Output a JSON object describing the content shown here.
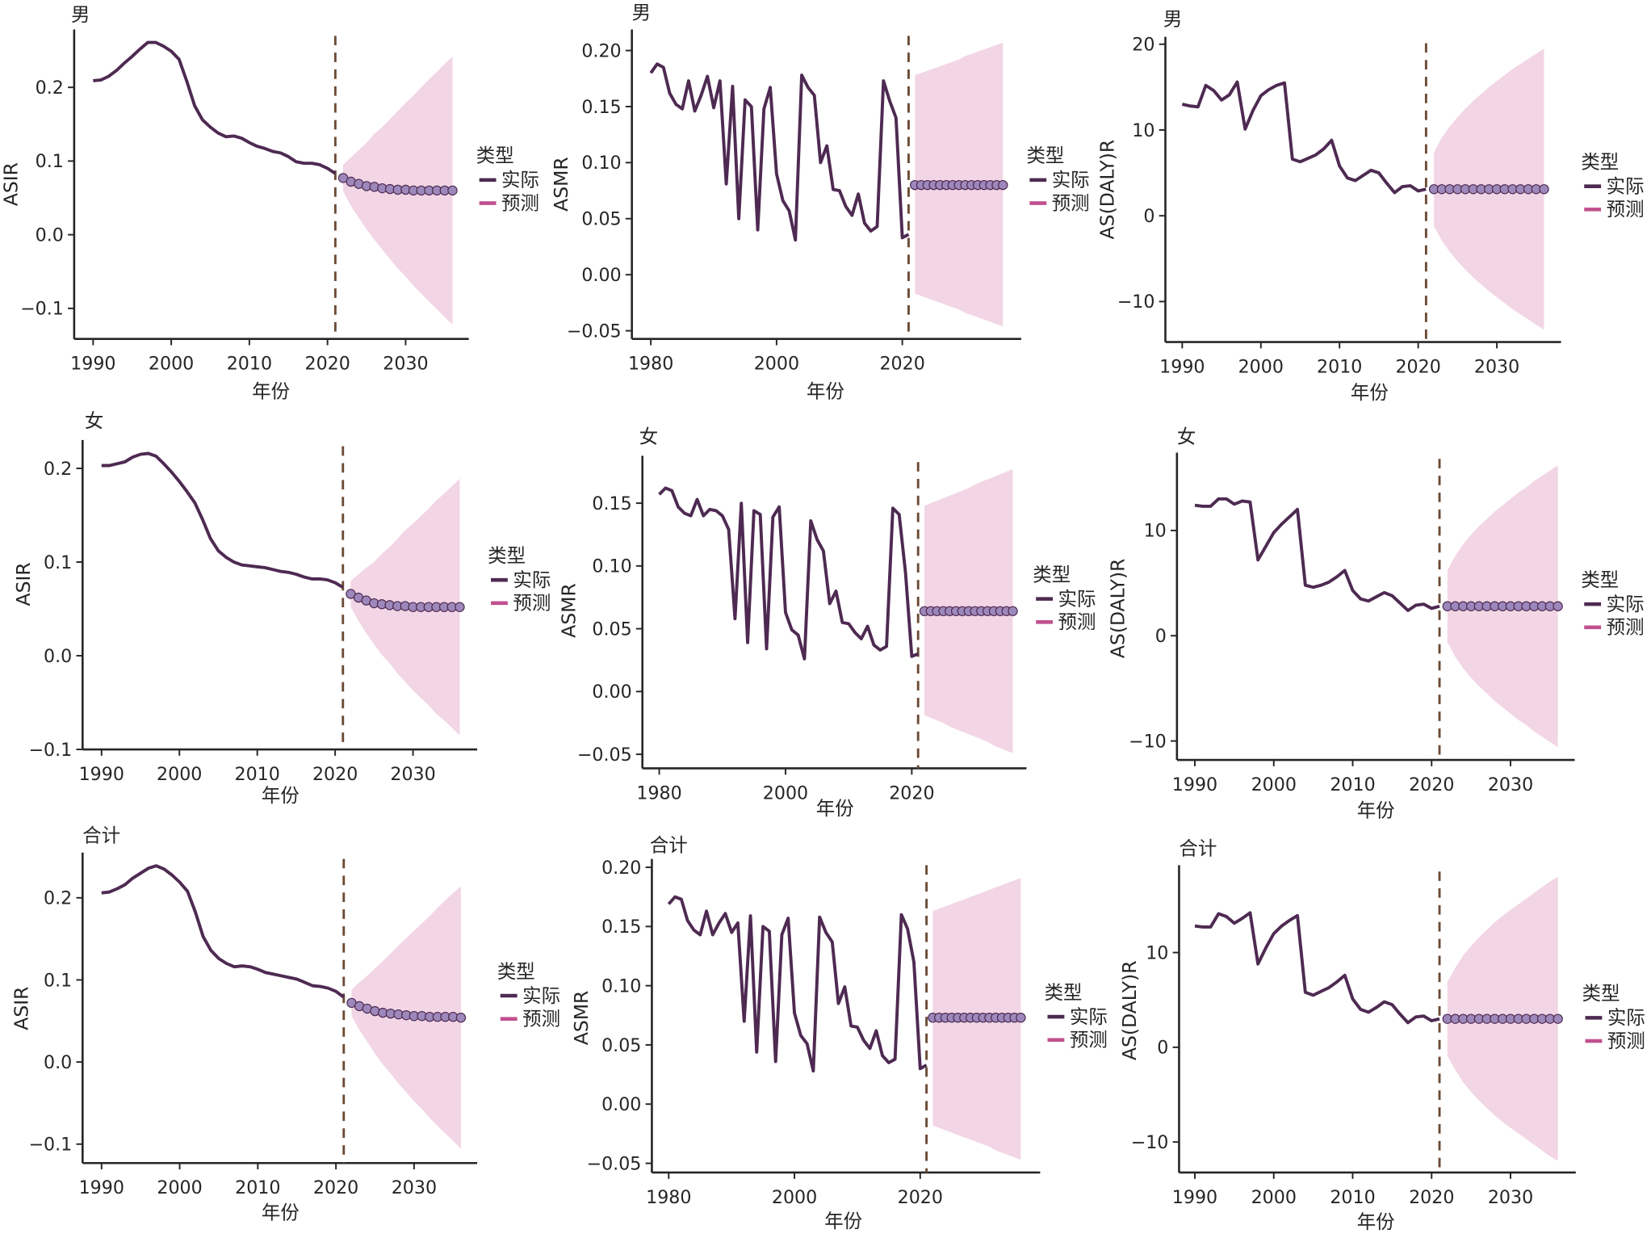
{
  "colors": {
    "actual_line": "#4e2a52",
    "forecast_line": "#c0508e",
    "forecast_dot_fill": "#9d88bb",
    "band_fill": "#f2d6e5",
    "divider": "#6b4a34",
    "axis": "#262626"
  },
  "legend": {
    "title": "类型",
    "entries": [
      "实际",
      "预测"
    ]
  },
  "chart_data": [
    {
      "type": "line",
      "panel_title": "男",
      "xlabel": "年份",
      "ylabel": "ASIR",
      "xticks": [
        1990,
        2000,
        2010,
        2020,
        2030
      ],
      "xtick_labels": [
        "1990",
        "2000",
        "2010",
        "2020",
        "2030"
      ],
      "yticks": [
        -0.1,
        0.0,
        0.1,
        0.2
      ],
      "ytick_labels": [
        "−0.1",
        "0.0",
        "0.1",
        "0.2"
      ],
      "xlim": [
        1988,
        2038
      ],
      "ylim": [
        -0.14,
        0.27
      ],
      "divider_year": 2021,
      "actual": {
        "x_start": 1990,
        "values": [
          0.209,
          0.21,
          0.215,
          0.223,
          0.233,
          0.242,
          0.252,
          0.261,
          0.261,
          0.256,
          0.249,
          0.238,
          0.208,
          0.175,
          0.156,
          0.146,
          0.138,
          0.133,
          0.134,
          0.131,
          0.125,
          0.12,
          0.117,
          0.113,
          0.111,
          0.106,
          0.099,
          0.097,
          0.097,
          0.095,
          0.09,
          0.083
        ]
      },
      "forecast": {
        "x_start": 2022,
        "values": [
          0.077,
          0.072,
          0.069,
          0.066,
          0.065,
          0.063,
          0.062,
          0.061,
          0.061,
          0.06,
          0.06,
          0.06,
          0.06,
          0.06,
          0.06
        ],
        "upper": [
          0.095,
          0.105,
          0.115,
          0.125,
          0.137,
          0.146,
          0.157,
          0.168,
          0.179,
          0.189,
          0.2,
          0.211,
          0.221,
          0.232,
          0.242
        ],
        "lower": [
          0.059,
          0.039,
          0.023,
          0.007,
          -0.007,
          -0.02,
          -0.033,
          -0.046,
          -0.057,
          -0.069,
          -0.08,
          -0.091,
          -0.101,
          -0.112,
          -0.122
        ]
      }
    },
    {
      "type": "line",
      "panel_title": "男",
      "xlabel": "年份",
      "ylabel": "ASMR",
      "xticks": [
        1980,
        2000,
        2020
      ],
      "xtick_labels": [
        "1980",
        "2000",
        "2020"
      ],
      "yticks": [
        -0.05,
        0.0,
        0.05,
        0.1,
        0.15,
        0.2
      ],
      "ytick_labels": [
        "−0.05",
        "0.00",
        "0.05",
        "0.10",
        "0.15",
        "0.20"
      ],
      "xlim": [
        1977,
        2039
      ],
      "ylim": [
        -0.057,
        0.218
      ],
      "divider_year": 2021,
      "actual": {
        "x_start": 1980,
        "values": [
          0.18,
          0.188,
          0.185,
          0.162,
          0.152,
          0.148,
          0.173,
          0.146,
          0.16,
          0.177,
          0.149,
          0.173,
          0.081,
          0.168,
          0.05,
          0.156,
          0.15,
          0.04,
          0.148,
          0.167,
          0.09,
          0.066,
          0.057,
          0.031,
          0.178,
          0.167,
          0.16,
          0.1,
          0.115,
          0.076,
          0.075,
          0.061,
          0.053,
          0.072,
          0.046,
          0.039,
          0.043,
          0.173,
          0.155,
          0.14,
          0.033,
          0.036
        ]
      },
      "forecast": {
        "x_start": 2022,
        "values": [
          0.08,
          0.08,
          0.08,
          0.08,
          0.08,
          0.08,
          0.08,
          0.08,
          0.08,
          0.08,
          0.08,
          0.08,
          0.08,
          0.08,
          0.08
        ],
        "upper": [
          0.178,
          0.18,
          0.182,
          0.184,
          0.186,
          0.188,
          0.19,
          0.192,
          0.195,
          0.197,
          0.199,
          0.201,
          0.203,
          0.205,
          0.207
        ],
        "lower": [
          -0.017,
          -0.019,
          -0.021,
          -0.023,
          -0.025,
          -0.027,
          -0.029,
          -0.031,
          -0.034,
          -0.036,
          -0.038,
          -0.04,
          -0.042,
          -0.044,
          -0.046
        ]
      }
    },
    {
      "type": "line",
      "panel_title": "男",
      "xlabel": "年份",
      "ylabel": "AS(DALY)R",
      "xticks": [
        1990,
        2000,
        2010,
        2020,
        2030
      ],
      "xtick_labels": [
        "1990",
        "2000",
        "2010",
        "2020",
        "2030"
      ],
      "yticks": [
        -10,
        0,
        10,
        20
      ],
      "ytick_labels": [
        "−10",
        "0",
        "10",
        "20"
      ],
      "xlim": [
        1988,
        2038
      ],
      "ylim": [
        -14.5,
        21
      ],
      "divider_year": 2021,
      "actual": {
        "x_start": 1990,
        "values": [
          13.0,
          12.8,
          12.7,
          15.2,
          14.6,
          13.5,
          14.1,
          15.6,
          10.1,
          12.3,
          14.0,
          14.7,
          15.2,
          15.5,
          6.6,
          6.3,
          6.7,
          7.1,
          7.8,
          8.8,
          5.8,
          4.4,
          4.1,
          4.7,
          5.3,
          5.0,
          3.8,
          2.7,
          3.4,
          3.5,
          2.9,
          3.1
        ]
      },
      "forecast": {
        "x_start": 2022,
        "values": [
          3.1,
          3.1,
          3.1,
          3.1,
          3.1,
          3.1,
          3.1,
          3.1,
          3.1,
          3.1,
          3.1,
          3.1,
          3.1,
          3.1,
          3.1
        ],
        "upper": [
          7.4,
          9.1,
          10.4,
          11.5,
          12.5,
          13.4,
          14.2,
          15.0,
          15.7,
          16.4,
          17.1,
          17.7,
          18.3,
          18.9,
          19.5
        ],
        "lower": [
          -1.2,
          -2.9,
          -4.2,
          -5.3,
          -6.3,
          -7.2,
          -8.0,
          -8.8,
          -9.5,
          -10.2,
          -10.9,
          -11.5,
          -12.1,
          -12.7,
          -13.3
        ]
      }
    },
    {
      "type": "line",
      "panel_title": "女",
      "xlabel": "年份",
      "ylabel": "ASIR",
      "xticks": [
        1990,
        2000,
        2010,
        2020,
        2030
      ],
      "xtick_labels": [
        "1990",
        "2000",
        "2010",
        "2020",
        "2030"
      ],
      "yticks": [
        -0.1,
        0.0,
        0.1,
        0.2
      ],
      "ytick_labels": [
        "−0.1",
        "0.0",
        "0.1",
        "0.2"
      ],
      "xlim": [
        1988,
        2038
      ],
      "ylim": [
        -0.1,
        0.23
      ],
      "divider_year": 2021,
      "actual": {
        "x_start": 1990,
        "values": [
          0.203,
          0.203,
          0.205,
          0.207,
          0.212,
          0.215,
          0.216,
          0.213,
          0.205,
          0.196,
          0.186,
          0.175,
          0.163,
          0.145,
          0.125,
          0.112,
          0.105,
          0.1,
          0.097,
          0.096,
          0.095,
          0.094,
          0.092,
          0.09,
          0.089,
          0.087,
          0.084,
          0.082,
          0.082,
          0.081,
          0.078,
          0.073
        ]
      },
      "forecast": {
        "x_start": 2022,
        "values": [
          0.066,
          0.062,
          0.059,
          0.056,
          0.055,
          0.054,
          0.053,
          0.053,
          0.052,
          0.052,
          0.052,
          0.052,
          0.052,
          0.052,
          0.052
        ],
        "upper": [
          0.08,
          0.087,
          0.094,
          0.1,
          0.109,
          0.116,
          0.125,
          0.134,
          0.141,
          0.149,
          0.157,
          0.166,
          0.173,
          0.181,
          0.189
        ],
        "lower": [
          0.052,
          0.037,
          0.024,
          0.012,
          0.001,
          -0.008,
          -0.019,
          -0.028,
          -0.037,
          -0.045,
          -0.053,
          -0.062,
          -0.069,
          -0.077,
          -0.085
        ]
      }
    },
    {
      "type": "line",
      "panel_title": "女",
      "xlabel": "年份",
      "ylabel": "ASMR",
      "xticks": [
        1980,
        2000,
        2020
      ],
      "xtick_labels": [
        "1980",
        "2000",
        "2020"
      ],
      "yticks": [
        -0.05,
        0.0,
        0.05,
        0.1,
        0.15
      ],
      "ytick_labels": [
        "−0.05",
        "0.00",
        "0.05",
        "0.10",
        "0.15"
      ],
      "xlim": [
        1977,
        2039
      ],
      "ylim": [
        -0.062,
        0.188
      ],
      "divider_year": 2021,
      "actual": {
        "x_start": 1980,
        "values": [
          0.157,
          0.162,
          0.16,
          0.147,
          0.142,
          0.14,
          0.153,
          0.14,
          0.145,
          0.144,
          0.14,
          0.129,
          0.058,
          0.15,
          0.039,
          0.144,
          0.141,
          0.034,
          0.139,
          0.147,
          0.063,
          0.049,
          0.045,
          0.026,
          0.136,
          0.121,
          0.112,
          0.07,
          0.08,
          0.055,
          0.054,
          0.047,
          0.042,
          0.052,
          0.037,
          0.033,
          0.036,
          0.146,
          0.141,
          0.095,
          0.028,
          0.03
        ]
      },
      "forecast": {
        "x_start": 2022,
        "values": [
          0.064,
          0.064,
          0.064,
          0.064,
          0.064,
          0.064,
          0.064,
          0.064,
          0.064,
          0.064,
          0.064,
          0.064,
          0.064,
          0.064,
          0.064
        ],
        "upper": [
          0.148,
          0.15,
          0.152,
          0.154,
          0.156,
          0.158,
          0.16,
          0.162,
          0.165,
          0.167,
          0.169,
          0.171,
          0.173,
          0.175,
          0.177
        ],
        "lower": [
          -0.019,
          -0.021,
          -0.023,
          -0.025,
          -0.028,
          -0.03,
          -0.032,
          -0.034,
          -0.036,
          -0.038,
          -0.04,
          -0.043,
          -0.045,
          -0.047,
          -0.049
        ]
      }
    },
    {
      "type": "line",
      "panel_title": "女",
      "xlabel": "年份",
      "ylabel": "AS(DALY)R",
      "xticks": [
        1990,
        2000,
        2010,
        2020,
        2030
      ],
      "xtick_labels": [
        "1990",
        "2000",
        "2010",
        "2020",
        "2030"
      ],
      "yticks": [
        -10,
        0,
        10
      ],
      "ytick_labels": [
        "−10",
        "0",
        "10"
      ],
      "xlim": [
        1988,
        2038
      ],
      "ylim": [
        -11.8,
        17.4
      ],
      "divider_year": 2021,
      "actual": {
        "x_start": 1990,
        "values": [
          12.4,
          12.3,
          12.3,
          13.0,
          13.0,
          12.5,
          12.8,
          12.7,
          7.2,
          8.5,
          9.8,
          10.6,
          11.3,
          12.0,
          4.8,
          4.6,
          4.8,
          5.1,
          5.6,
          6.2,
          4.3,
          3.5,
          3.3,
          3.7,
          4.1,
          3.8,
          3.1,
          2.4,
          2.9,
          3.0,
          2.6,
          2.8
        ]
      },
      "forecast": {
        "x_start": 2022,
        "values": [
          2.8,
          2.8,
          2.8,
          2.8,
          2.8,
          2.8,
          2.8,
          2.8,
          2.8,
          2.8,
          2.8,
          2.8,
          2.8,
          2.8,
          2.8
        ],
        "upper": [
          6.2,
          7.6,
          8.7,
          9.6,
          10.4,
          11.1,
          11.8,
          12.4,
          13.0,
          13.6,
          14.1,
          14.7,
          15.2,
          15.7,
          16.2
        ],
        "lower": [
          -0.6,
          -2.0,
          -3.1,
          -4.0,
          -4.8,
          -5.5,
          -6.2,
          -6.8,
          -7.4,
          -8.0,
          -8.5,
          -9.1,
          -9.6,
          -10.1,
          -10.6
        ]
      }
    },
    {
      "type": "line",
      "panel_title": "合计",
      "xlabel": "年份",
      "ylabel": "ASIR",
      "xticks": [
        1990,
        2000,
        2010,
        2020,
        2030
      ],
      "xtick_labels": [
        "1990",
        "2000",
        "2010",
        "2020",
        "2030"
      ],
      "yticks": [
        -0.1,
        0.0,
        0.1,
        0.2
      ],
      "ytick_labels": [
        "−0.1",
        "0.0",
        "0.1",
        "0.2"
      ],
      "xlim": [
        1988,
        2038
      ],
      "ylim": [
        -0.124,
        0.255
      ],
      "divider_year": 2021,
      "actual": {
        "x_start": 1990,
        "values": [
          0.206,
          0.207,
          0.211,
          0.216,
          0.224,
          0.23,
          0.236,
          0.239,
          0.235,
          0.228,
          0.219,
          0.208,
          0.183,
          0.153,
          0.136,
          0.126,
          0.12,
          0.116,
          0.117,
          0.116,
          0.113,
          0.109,
          0.107,
          0.105,
          0.103,
          0.101,
          0.097,
          0.093,
          0.092,
          0.09,
          0.086,
          0.079
        ]
      },
      "forecast": {
        "x_start": 2022,
        "values": [
          0.072,
          0.068,
          0.065,
          0.062,
          0.06,
          0.059,
          0.058,
          0.057,
          0.056,
          0.056,
          0.055,
          0.055,
          0.055,
          0.055,
          0.054
        ],
        "upper": [
          0.088,
          0.097,
          0.105,
          0.114,
          0.123,
          0.132,
          0.142,
          0.151,
          0.16,
          0.169,
          0.178,
          0.188,
          0.197,
          0.206,
          0.214
        ],
        "lower": [
          0.056,
          0.039,
          0.025,
          0.01,
          -0.003,
          -0.014,
          -0.026,
          -0.037,
          -0.048,
          -0.057,
          -0.068,
          -0.078,
          -0.087,
          -0.096,
          -0.106
        ]
      }
    },
    {
      "type": "line",
      "panel_title": "合计",
      "xlabel": "年份",
      "ylabel": "ASMR",
      "xticks": [
        1980,
        2000,
        2020
      ],
      "xtick_labels": [
        "1980",
        "2000",
        "2020"
      ],
      "yticks": [
        -0.05,
        0.0,
        0.05,
        0.1,
        0.15,
        0.2
      ],
      "ytick_labels": [
        "−0.05",
        "0.00",
        "0.05",
        "0.10",
        "0.15",
        "0.20"
      ],
      "xlim": [
        1977,
        2039
      ],
      "ylim": [
        -0.058,
        0.207
      ],
      "divider_year": 2021,
      "actual": {
        "x_start": 1980,
        "values": [
          0.169,
          0.175,
          0.173,
          0.155,
          0.147,
          0.143,
          0.163,
          0.143,
          0.153,
          0.161,
          0.145,
          0.153,
          0.07,
          0.159,
          0.044,
          0.15,
          0.146,
          0.036,
          0.143,
          0.157,
          0.077,
          0.058,
          0.051,
          0.028,
          0.158,
          0.145,
          0.137,
          0.085,
          0.099,
          0.066,
          0.065,
          0.054,
          0.047,
          0.062,
          0.041,
          0.035,
          0.038,
          0.16,
          0.148,
          0.12,
          0.03,
          0.033
        ]
      },
      "forecast": {
        "x_start": 2022,
        "values": [
          0.073,
          0.073,
          0.073,
          0.073,
          0.073,
          0.073,
          0.073,
          0.073,
          0.073,
          0.073,
          0.073,
          0.073,
          0.073,
          0.073,
          0.073
        ],
        "upper": [
          0.163,
          0.165,
          0.167,
          0.169,
          0.171,
          0.173,
          0.175,
          0.177,
          0.179,
          0.181,
          0.183,
          0.185,
          0.187,
          0.189,
          0.191
        ],
        "lower": [
          -0.018,
          -0.02,
          -0.022,
          -0.024,
          -0.026,
          -0.028,
          -0.03,
          -0.032,
          -0.034,
          -0.036,
          -0.039,
          -0.041,
          -0.043,
          -0.045,
          -0.047
        ]
      }
    },
    {
      "type": "line",
      "panel_title": "合计",
      "xlabel": "年份",
      "ylabel": "AS(DALY)R",
      "xticks": [
        1990,
        2000,
        2010,
        2020,
        2030
      ],
      "xtick_labels": [
        "1990",
        "2000",
        "2010",
        "2020",
        "2030"
      ],
      "yticks": [
        -10,
        0,
        10
      ],
      "ytick_labels": [
        "−10",
        "0",
        "10"
      ],
      "xlim": [
        1988,
        2038
      ],
      "ylim": [
        -13.3,
        19.2
      ],
      "divider_year": 2021,
      "actual": {
        "x_start": 1990,
        "values": [
          12.8,
          12.7,
          12.7,
          14.1,
          13.8,
          13.1,
          13.6,
          14.2,
          8.8,
          10.5,
          12.0,
          12.8,
          13.4,
          13.9,
          5.8,
          5.5,
          5.9,
          6.3,
          6.9,
          7.6,
          5.1,
          4.0,
          3.7,
          4.2,
          4.8,
          4.5,
          3.5,
          2.6,
          3.2,
          3.3,
          2.8,
          3.0
        ]
      },
      "forecast": {
        "x_start": 2022,
        "values": [
          3.0,
          3.0,
          3.0,
          3.0,
          3.0,
          3.0,
          3.0,
          3.0,
          3.0,
          3.0,
          3.0,
          3.0,
          3.0,
          3.0,
          3.0
        ],
        "upper": [
          6.9,
          8.4,
          9.7,
          10.7,
          11.6,
          12.4,
          13.2,
          13.9,
          14.5,
          15.1,
          15.7,
          16.3,
          16.9,
          17.5,
          18.0
        ],
        "lower": [
          -0.9,
          -2.4,
          -3.7,
          -4.7,
          -5.6,
          -6.4,
          -7.2,
          -7.9,
          -8.5,
          -9.1,
          -9.7,
          -10.3,
          -10.9,
          -11.5,
          -12.0
        ]
      }
    }
  ]
}
